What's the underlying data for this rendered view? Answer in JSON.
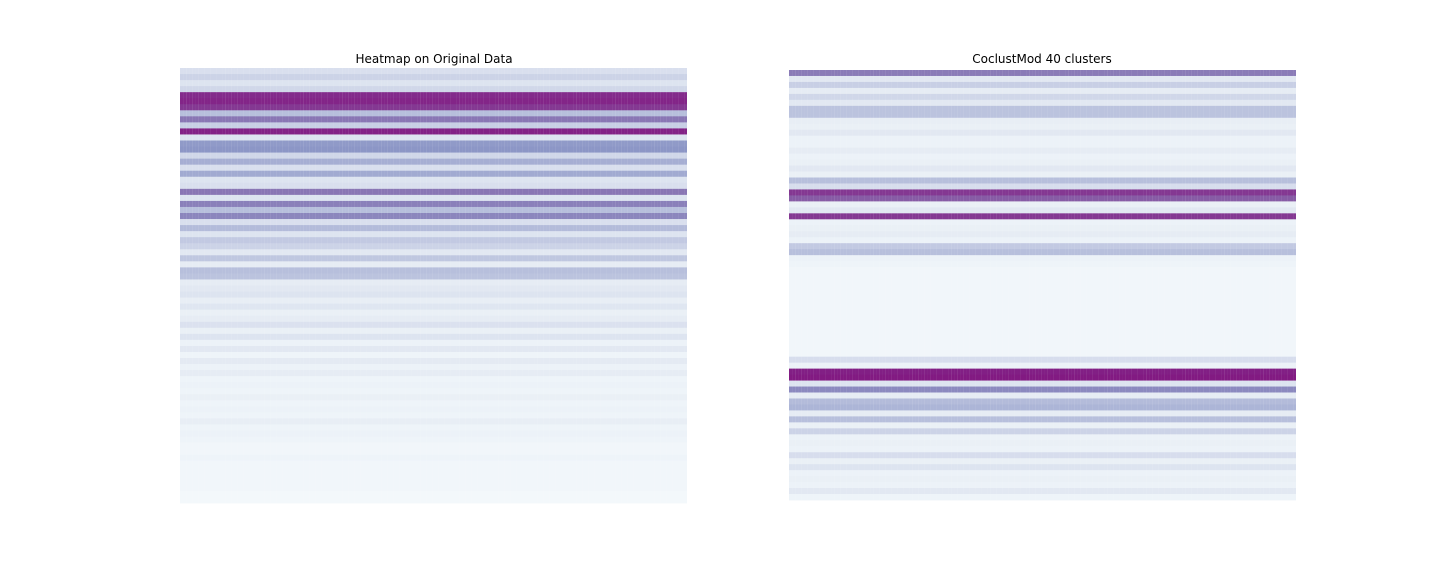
{
  "colors": {
    "colormap": "BuPu",
    "low": "#f7fcfd",
    "mid": "#8c96c6",
    "high": "#810f7c",
    "background": "#ffffff"
  },
  "chart_data": [
    {
      "type": "heatmap",
      "title": "Heatmap on Original Data",
      "xlabel": "",
      "ylabel": "",
      "axes": "off",
      "grid": false,
      "legend": "none",
      "value_range": [
        0,
        1
      ],
      "row_values": [
        0.14,
        0.2,
        0.12,
        0.18,
        0.9,
        0.92,
        0.85,
        0.3,
        0.62,
        0.22,
        0.93,
        0.12,
        0.48,
        0.5,
        0.18,
        0.38,
        0.14,
        0.4,
        0.12,
        0.14,
        0.62,
        0.12,
        0.58,
        0.3,
        0.56,
        0.14,
        0.32,
        0.12,
        0.25,
        0.2,
        0.1,
        0.26,
        0.08,
        0.3,
        0.28,
        0.08,
        0.1,
        0.12,
        0.07,
        0.11,
        0.06,
        0.08,
        0.13,
        0.06,
        0.12,
        0.05,
        0.1,
        0.04,
        0.09,
        0.05,
        0.08,
        0.04,
        0.05,
        0.04,
        0.06,
        0.04,
        0.05,
        0.04,
        0.07,
        0.04,
        0.05,
        0.04,
        0.03,
        0.03,
        0.04,
        0.03,
        0.03,
        0.03,
        0.03,
        0.03,
        0.02,
        0.02
      ]
    },
    {
      "type": "heatmap",
      "title": "CoclustMod 40 clusters",
      "xlabel": "",
      "ylabel": "",
      "axes": "off",
      "grid": false,
      "legend": "none",
      "value_range": [
        0,
        1
      ],
      "row_values": [
        0.6,
        0.1,
        0.22,
        0.08,
        0.18,
        0.1,
        0.28,
        0.28,
        0.07,
        0.06,
        0.1,
        0.05,
        0.05,
        0.08,
        0.05,
        0.06,
        0.1,
        0.06,
        0.3,
        0.15,
        0.85,
        0.72,
        0.06,
        0.1,
        0.85,
        0.05,
        0.06,
        0.08,
        0.05,
        0.25,
        0.3,
        0.05,
        0.04,
        0.03,
        0.03,
        0.03,
        0.03,
        0.03,
        0.03,
        0.03,
        0.03,
        0.03,
        0.03,
        0.03,
        0.03,
        0.03,
        0.03,
        0.03,
        0.15,
        0.05,
        0.94,
        0.96,
        0.12,
        0.55,
        0.08,
        0.32,
        0.35,
        0.08,
        0.3,
        0.06,
        0.2,
        0.05,
        0.06,
        0.05,
        0.15,
        0.06,
        0.12,
        0.05,
        0.06,
        0.05,
        0.1,
        0.04
      ]
    }
  ]
}
